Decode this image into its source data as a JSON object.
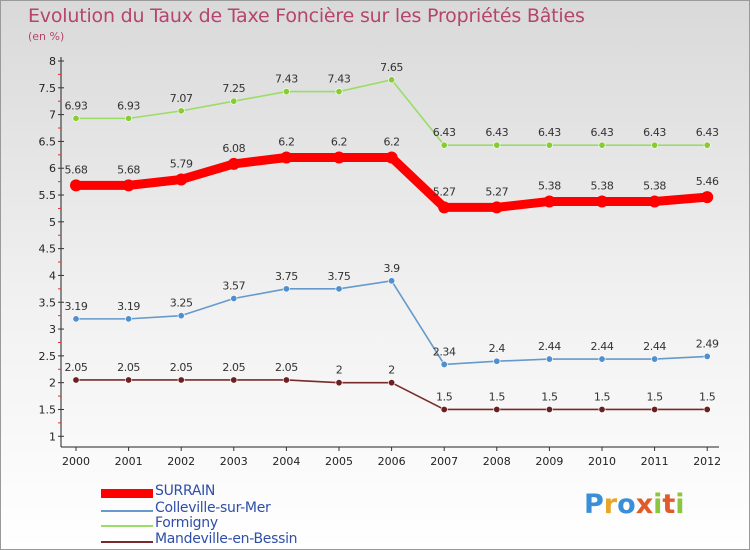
{
  "chart_data": {
    "type": "line",
    "title": "Evolution du Taux de Taxe Foncière sur les Propriétés Bâties",
    "ylabel": "(en %)",
    "xlabel": "",
    "x": [
      "2000",
      "2001",
      "2002",
      "2003",
      "2004",
      "2005",
      "2006",
      "2007",
      "2008",
      "2009",
      "2010",
      "2011",
      "2012"
    ],
    "ylim": [
      0.8,
      8
    ],
    "yticks": [
      "1",
      "1.5",
      "2",
      "2.5",
      "3",
      "3.5",
      "4",
      "4.5",
      "5",
      "5.5",
      "6",
      "6.5",
      "7",
      "7.5",
      "8"
    ],
    "grid": false,
    "legend": "bottom-left",
    "series": [
      {
        "name": "SURRAIN",
        "color": "#ff0000",
        "marker": "#ff0000",
        "emphasis": true,
        "values": [
          5.68,
          5.68,
          5.79,
          6.08,
          6.2,
          6.2,
          6.2,
          5.27,
          5.27,
          5.38,
          5.38,
          5.38,
          5.46
        ],
        "labels": [
          "5.68",
          "5.68",
          "5.79",
          "6.08",
          "6.2",
          "6.2",
          "6.2",
          "5.27",
          "5.27",
          "5.38",
          "5.38",
          "5.38",
          "5.46"
        ]
      },
      {
        "name": "Colleville-sur-Mer",
        "color": "#6699cc",
        "marker": "#4f8fcf",
        "emphasis": false,
        "values": [
          3.19,
          3.19,
          3.25,
          3.57,
          3.75,
          3.75,
          3.9,
          2.34,
          2.4,
          2.44,
          2.44,
          2.44,
          2.49
        ],
        "labels": [
          "3.19",
          "3.19",
          "3.25",
          "3.57",
          "3.75",
          "3.75",
          "3.9",
          "2.34",
          "2.4",
          "2.44",
          "2.44",
          "2.44",
          "2.49"
        ]
      },
      {
        "name": "Formigny",
        "color": "#99dd66",
        "marker": "#88cc33",
        "emphasis": false,
        "values": [
          6.93,
          6.93,
          7.07,
          7.25,
          7.43,
          7.43,
          7.65,
          6.43,
          6.43,
          6.43,
          6.43,
          6.43,
          6.43
        ],
        "labels": [
          "6.93",
          "6.93",
          "7.07",
          "7.25",
          "7.43",
          "7.43",
          "7.65",
          "6.43",
          "6.43",
          "6.43",
          "6.43",
          "6.43",
          "6.43"
        ]
      },
      {
        "name": "Mandeville-en-Bessin",
        "color": "#7a2a2a",
        "marker": "#6b1f1f",
        "emphasis": false,
        "values": [
          2.05,
          2.05,
          2.05,
          2.05,
          2.05,
          2.0,
          2.0,
          1.5,
          1.5,
          1.5,
          1.5,
          1.5,
          1.5
        ],
        "labels": [
          "2.05",
          "2.05",
          "2.05",
          "2.05",
          "2.05",
          "2",
          "2",
          "1.5",
          "1.5",
          "1.5",
          "1.5",
          "1.5",
          "1.5"
        ]
      }
    ]
  },
  "brand": {
    "letters": [
      "P",
      "r",
      "o",
      "x",
      "i",
      "t",
      "i"
    ],
    "colors": [
      "#3a8fd8",
      "#e8a52a",
      "#3a8fd8",
      "#e05a2a",
      "#8cc63f",
      "#e05a2a",
      "#8cc63f"
    ]
  }
}
